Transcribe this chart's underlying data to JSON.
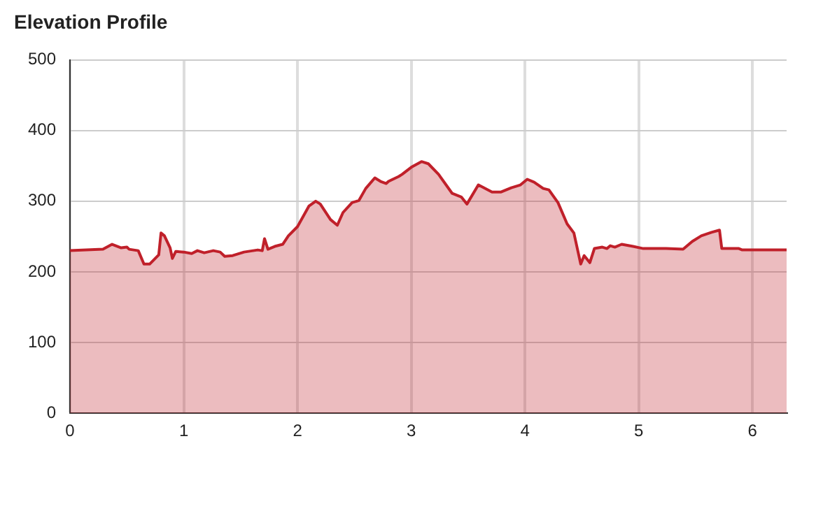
{
  "chart_data": {
    "type": "area",
    "title": "Elevation Profile",
    "series": [
      {
        "color": "#c0202a",
        "x": [
          0,
          0.29,
          0.37,
          0.45,
          0.5,
          0.52,
          0.6,
          0.65,
          0.7,
          0.78,
          0.8,
          0.83,
          0.88,
          0.9,
          0.93,
          1.0,
          1.07,
          1.12,
          1.18,
          1.26,
          1.32,
          1.36,
          1.43,
          1.53,
          1.65,
          1.69,
          1.71,
          1.74,
          1.8,
          1.87,
          1.92,
          2.0,
          2.1,
          2.16,
          2.2,
          2.29,
          2.35,
          2.4,
          2.48,
          2.54,
          2.6,
          2.68,
          2.73,
          2.78,
          2.8,
          2.89,
          2.92,
          3.0,
          3.09,
          3.15,
          3.24,
          3.36,
          3.44,
          3.49,
          3.59,
          3.71,
          3.79,
          3.88,
          3.96,
          4.02,
          4.08,
          4.16,
          4.21,
          4.29,
          4.37,
          4.43,
          4.49,
          4.52,
          4.57,
          4.61,
          4.68,
          4.72,
          4.75,
          4.79,
          4.85,
          4.95,
          5.04,
          5.16,
          5.24,
          5.39,
          5.47,
          5.55,
          5.64,
          5.71,
          5.73,
          5.88,
          5.91,
          6.3
        ],
        "values": [
          230,
          232,
          239,
          234,
          235,
          232,
          230,
          211,
          211,
          224,
          255,
          251,
          234,
          219,
          229,
          228,
          226,
          230,
          227,
          230,
          228,
          222,
          223,
          228,
          231,
          230,
          247,
          232,
          236,
          239,
          251,
          264,
          293,
          300,
          296,
          274,
          266,
          284,
          298,
          301,
          318,
          333,
          328,
          325,
          328,
          335,
          338,
          348,
          356,
          353,
          338,
          311,
          306,
          296,
          323,
          313,
          313,
          319,
          323,
          331,
          327,
          318,
          316,
          298,
          268,
          255,
          211,
          223,
          213,
          233,
          235,
          233,
          237,
          235,
          239,
          236,
          233,
          233,
          233,
          232,
          243,
          251,
          256,
          259,
          233,
          233,
          231,
          231
        ]
      }
    ],
    "xlim": [
      0,
      6.3
    ],
    "xticks": [
      0,
      1,
      2,
      3,
      4,
      5,
      6
    ],
    "ylim": [
      0,
      500
    ],
    "yticks": [
      0,
      100,
      200,
      300,
      400,
      500
    ],
    "grid": true,
    "legend": false
  }
}
